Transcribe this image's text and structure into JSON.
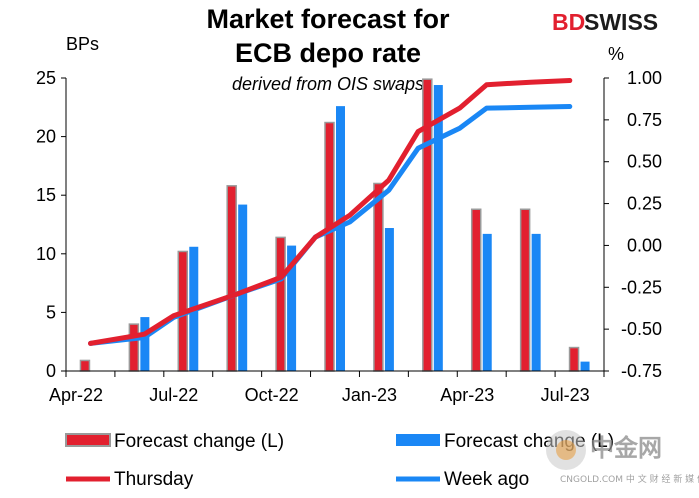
{
  "brand": {
    "part1": "BD",
    "part2": "SWISS"
  },
  "watermark": {
    "main": "中金网",
    "sub": "CNGOLD.COM  中 文 财 经 新 媒 体"
  },
  "colors": {
    "red": "#e2202f",
    "blue": "#1a87f5",
    "bar_edge": "#9a9a9a"
  },
  "chart_data": {
    "type": "bar",
    "title_line1": "Market forecast for",
    "title_line2": "ECB depo rate",
    "subtitle": "derived from OIS swaps",
    "left_axis": {
      "unit": "BPs",
      "min": 0,
      "max": 25,
      "ticks": [
        "0",
        "5",
        "10",
        "15",
        "20",
        "25"
      ]
    },
    "right_axis": {
      "unit": "%",
      "min": -0.75,
      "max": 1.0,
      "ticks": [
        "1.00",
        "0.75",
        "0.50",
        "0.25",
        "0.00",
        "-0.25",
        "-0.50",
        "-0.75"
      ]
    },
    "x_ticks": [
      "Apr-22",
      "Jul-22",
      "Oct-22",
      "Jan-23",
      "Apr-23",
      "Jul-23"
    ],
    "bar_series": [
      {
        "name": "Forecast change (L)",
        "values": [
          0.9,
          4.0,
          10.2,
          15.8,
          11.4,
          21.2,
          16.0,
          24.9,
          13.8,
          13.8,
          2.0
        ]
      },
      {
        "name": "Forecast change (L)",
        "values": [
          null,
          4.6,
          10.6,
          14.2,
          10.7,
          22.6,
          12.2,
          24.4,
          11.7,
          11.7,
          0.8
        ]
      }
    ],
    "line_series": [
      {
        "name": "Thursday",
        "points": [
          [
            0,
            -0.585
          ],
          [
            1.1,
            -0.53
          ],
          [
            1.7,
            -0.42
          ],
          [
            3.0,
            -0.29
          ],
          [
            3.9,
            -0.19
          ],
          [
            4.6,
            0.05
          ],
          [
            5.3,
            0.18
          ],
          [
            6.1,
            0.39
          ],
          [
            6.7,
            0.68
          ],
          [
            7.55,
            0.82
          ],
          [
            8.1,
            0.96
          ],
          [
            9.0,
            0.975
          ],
          [
            9.8,
            0.985
          ]
        ]
      },
      {
        "name": "Week ago",
        "points": [
          [
            0,
            -0.585
          ],
          [
            1.1,
            -0.55
          ],
          [
            1.7,
            -0.43
          ],
          [
            3.0,
            -0.29
          ],
          [
            3.9,
            -0.2
          ],
          [
            4.6,
            0.05
          ],
          [
            5.3,
            0.14
          ],
          [
            6.1,
            0.33
          ],
          [
            6.7,
            0.58
          ],
          [
            7.55,
            0.7
          ],
          [
            8.1,
            0.82
          ],
          [
            9.0,
            0.825
          ],
          [
            9.8,
            0.83
          ]
        ]
      }
    ],
    "legend": {
      "bar_red": "Forecast change (L)",
      "bar_blue": "Forecast change (L)",
      "line_red": "Thursday",
      "line_blue": "Week ago"
    }
  }
}
